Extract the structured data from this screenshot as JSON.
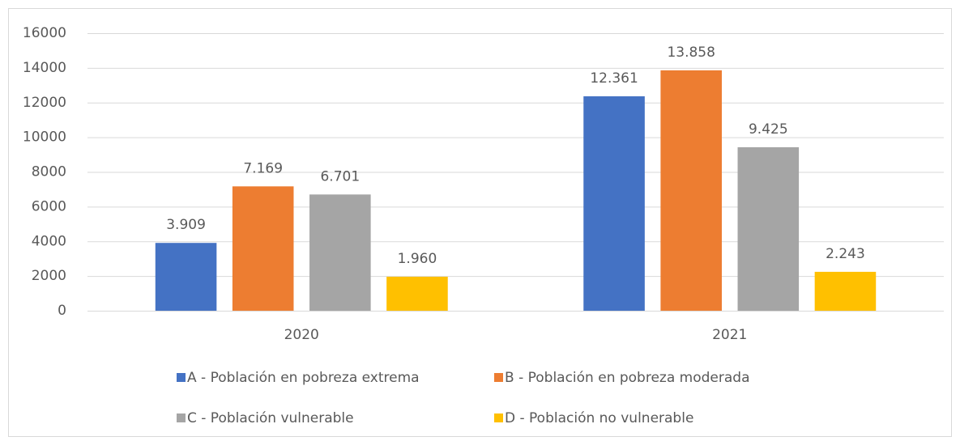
{
  "chart_data": {
    "type": "bar",
    "categories": [
      "2020",
      "2021"
    ],
    "series": [
      {
        "name": "A - Población en pobreza extrema",
        "color": "#4472c4",
        "values": [
          3909,
          12361
        ],
        "value_labels": [
          "3.909",
          "12.361"
        ]
      },
      {
        "name": "B - Población en pobreza moderada",
        "color": "#ed7d31",
        "values": [
          7169,
          13858
        ],
        "value_labels": [
          "7.169",
          "13.858"
        ]
      },
      {
        "name": "C - Población vulnerable",
        "color": "#a5a5a5",
        "values": [
          6701,
          9425
        ],
        "value_labels": [
          "6.701",
          "9.425"
        ]
      },
      {
        "name": "D - Población no vulnerable",
        "color": "#ffc000",
        "values": [
          1960,
          2243
        ],
        "value_labels": [
          "1.960",
          "2.243"
        ]
      }
    ],
    "ylim": [
      0,
      16000
    ],
    "yticks": [
      0,
      2000,
      4000,
      6000,
      8000,
      10000,
      12000,
      14000,
      16000
    ],
    "grid": true,
    "legend": "bottom"
  }
}
